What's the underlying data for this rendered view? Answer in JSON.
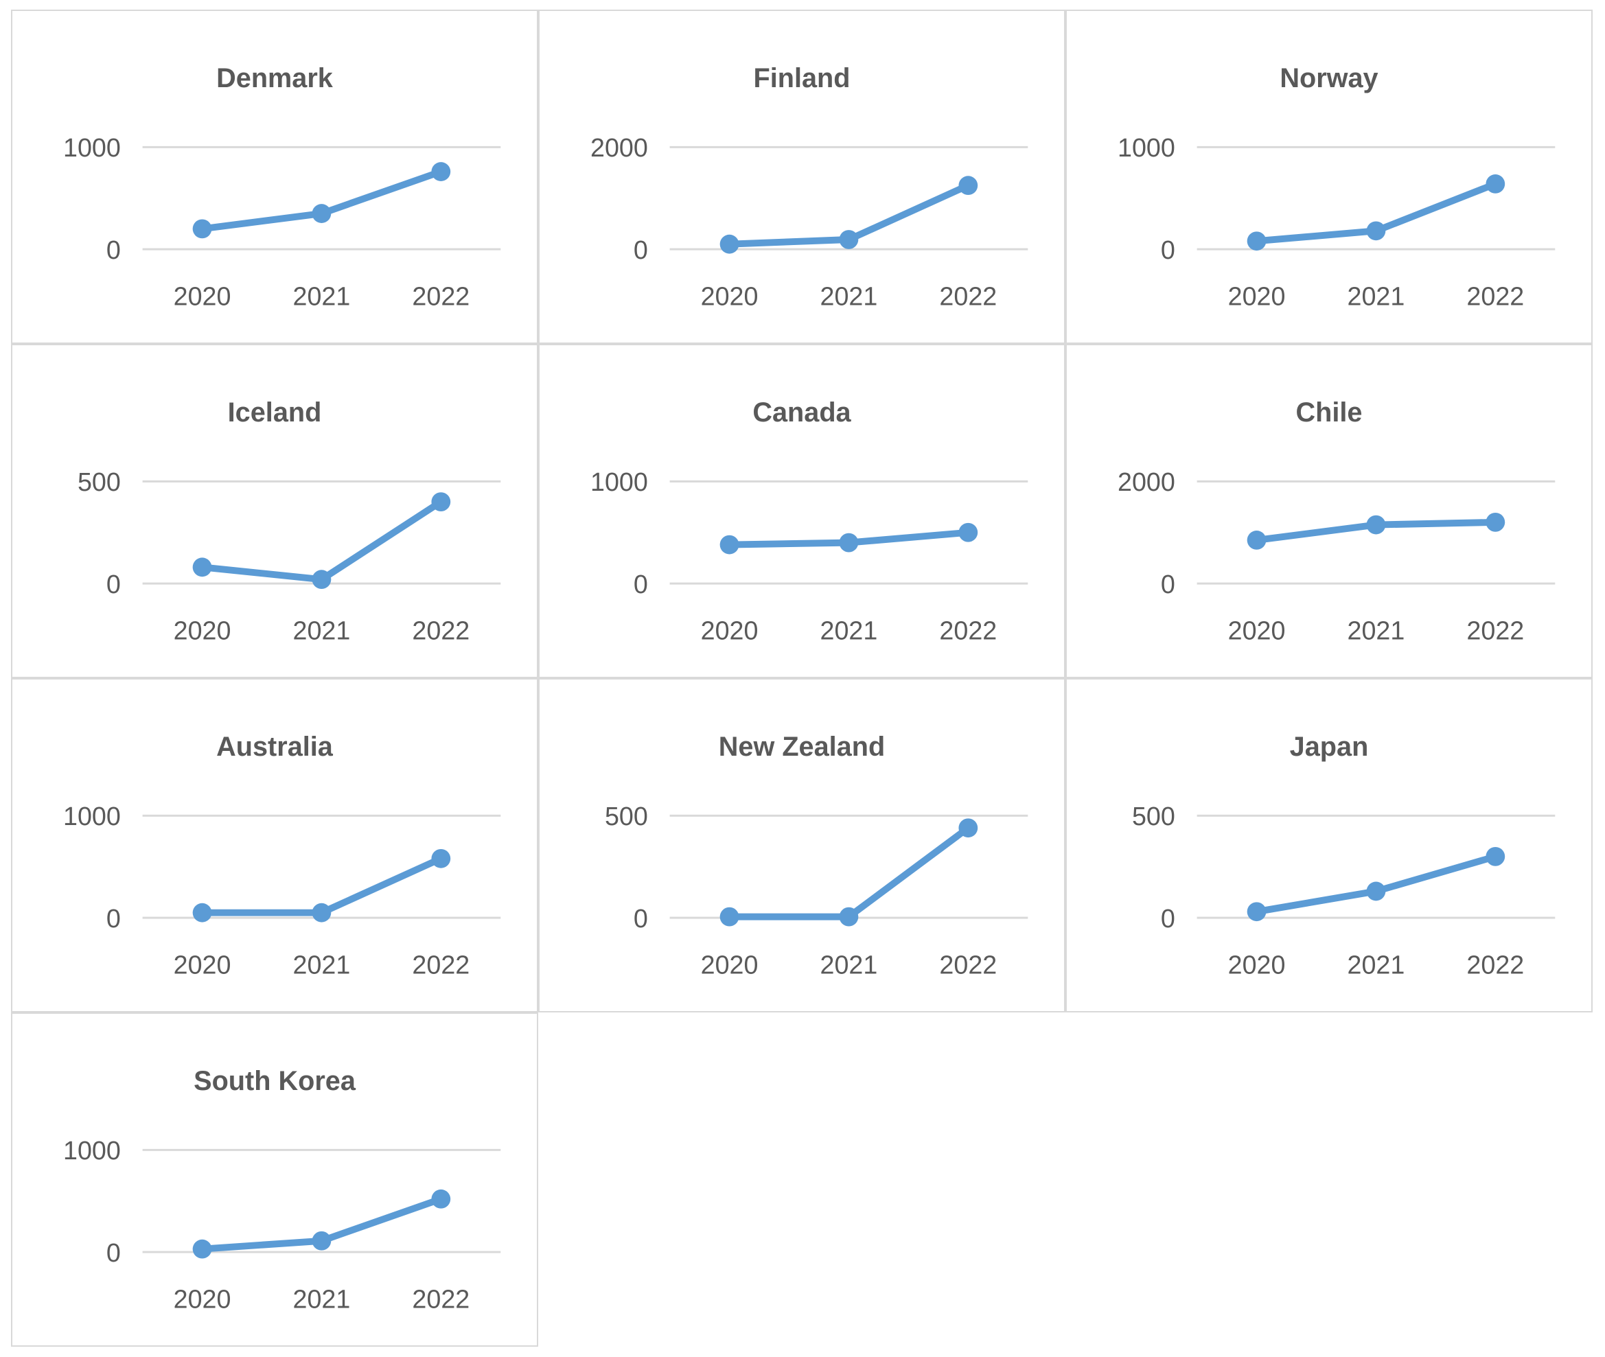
{
  "style": {
    "accent": "#5B9BD5",
    "text_color": "#595959",
    "gridline_color": "#D9D9D9",
    "cell_border_color": "#D9D9D9",
    "background": "#FFFFFF"
  },
  "chart_data": [
    {
      "type": "line",
      "title": "Denmark",
      "x": [
        "2020",
        "2021",
        "2022"
      ],
      "values": [
        200,
        350,
        760
      ],
      "ylim": [
        0,
        1000
      ],
      "yticks": [
        "0",
        "1000"
      ],
      "legend": false,
      "grid": "horizontal"
    },
    {
      "type": "line",
      "title": "Finland",
      "x": [
        "2020",
        "2021",
        "2022"
      ],
      "values": [
        100,
        190,
        1250
      ],
      "ylim": [
        0,
        2000
      ],
      "yticks": [
        "0",
        "2000"
      ],
      "legend": false,
      "grid": "horizontal"
    },
    {
      "type": "line",
      "title": "Norway",
      "x": [
        "2020",
        "2021",
        "2022"
      ],
      "values": [
        80,
        180,
        640
      ],
      "ylim": [
        0,
        1000
      ],
      "yticks": [
        "0",
        "1000"
      ],
      "legend": false,
      "grid": "horizontal"
    },
    {
      "type": "line",
      "title": "Iceland",
      "x": [
        "2020",
        "2021",
        "2022"
      ],
      "values": [
        80,
        20,
        400
      ],
      "ylim": [
        0,
        500
      ],
      "yticks": [
        "0",
        "500"
      ],
      "legend": false,
      "grid": "horizontal"
    },
    {
      "type": "line",
      "title": "Canada",
      "x": [
        "2020",
        "2021",
        "2022"
      ],
      "values": [
        380,
        400,
        500
      ],
      "ylim": [
        0,
        1000
      ],
      "yticks": [
        "0",
        "1000"
      ],
      "legend": false,
      "grid": "horizontal"
    },
    {
      "type": "line",
      "title": "Chile",
      "x": [
        "2020",
        "2021",
        "2022"
      ],
      "values": [
        850,
        1150,
        1200
      ],
      "ylim": [
        0,
        2000
      ],
      "yticks": [
        "0",
        "2000"
      ],
      "legend": false,
      "grid": "horizontal"
    },
    {
      "type": "line",
      "title": "Australia",
      "x": [
        "2020",
        "2021",
        "2022"
      ],
      "values": [
        50,
        50,
        580
      ],
      "ylim": [
        0,
        1000
      ],
      "yticks": [
        "0",
        "1000"
      ],
      "legend": false,
      "grid": "horizontal"
    },
    {
      "type": "line",
      "title": "New Zealand",
      "x": [
        "2020",
        "2021",
        "2022"
      ],
      "values": [
        5,
        5,
        440
      ],
      "ylim": [
        0,
        500
      ],
      "yticks": [
        "0",
        "500"
      ],
      "legend": false,
      "grid": "horizontal"
    },
    {
      "type": "line",
      "title": "Japan",
      "x": [
        "2020",
        "2021",
        "2022"
      ],
      "values": [
        30,
        130,
        300
      ],
      "ylim": [
        0,
        500
      ],
      "yticks": [
        "0",
        "500"
      ],
      "legend": false,
      "grid": "horizontal"
    },
    {
      "type": "line",
      "title": "South Korea",
      "x": [
        "2020",
        "2021",
        "2022"
      ],
      "values": [
        30,
        110,
        520
      ],
      "ylim": [
        0,
        1000
      ],
      "yticks": [
        "0",
        "1000"
      ],
      "legend": false,
      "grid": "horizontal"
    }
  ]
}
